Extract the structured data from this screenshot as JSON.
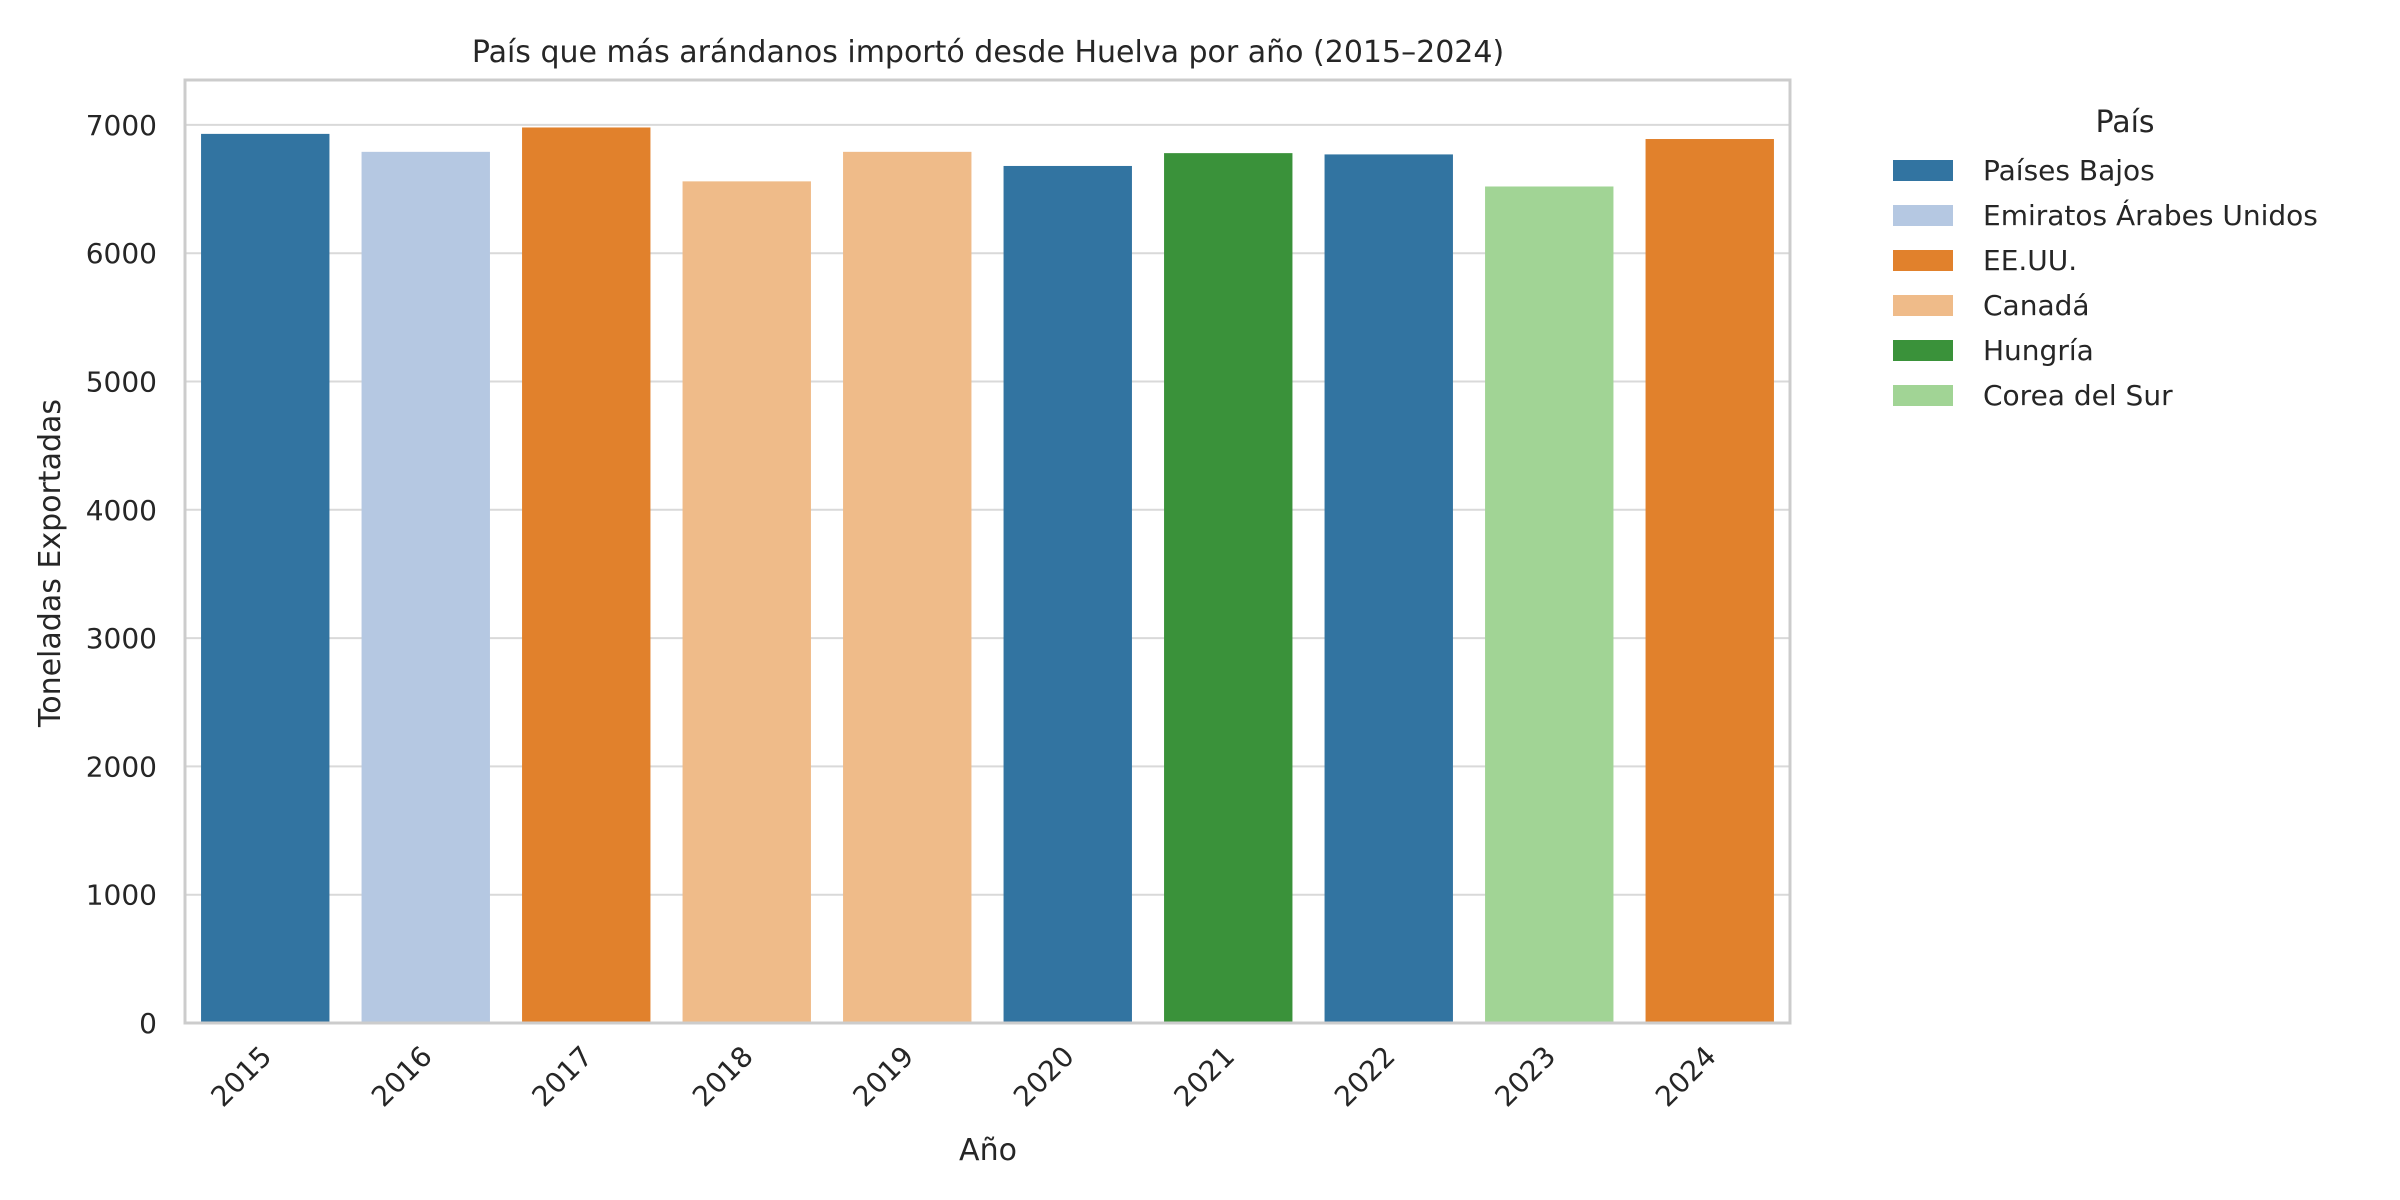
{
  "chart_data": {
    "type": "bar",
    "title": "País que más arándanos importó desde Huelva por año (2015–2024)",
    "xlabel": "Año",
    "ylabel": "Toneladas Exportadas",
    "ylim": [
      0,
      7350
    ],
    "yticks": [
      0,
      1000,
      2000,
      3000,
      4000,
      5000,
      6000,
      7000
    ],
    "grid": true,
    "legend": {
      "title": "País",
      "placement": "outside-right",
      "entries": [
        {
          "name": "Países Bajos",
          "color": "#3274a1"
        },
        {
          "name": "Emiratos Árabes Unidos",
          "color": "#b5c8e2"
        },
        {
          "name": "EE.UU.",
          "color": "#e1812c"
        },
        {
          "name": "Canadá",
          "color": "#efbb89"
        },
        {
          "name": "Hungría",
          "color": "#3a923a"
        },
        {
          "name": "Corea del Sur",
          "color": "#a1d495"
        }
      ]
    },
    "categories": [
      "2015",
      "2016",
      "2017",
      "2018",
      "2019",
      "2020",
      "2021",
      "2022",
      "2023",
      "2024"
    ],
    "values": [
      6930,
      6790,
      6980,
      6560,
      6790,
      6680,
      6780,
      6770,
      6520,
      6890
    ],
    "bar_country": [
      "Países Bajos",
      "Emiratos Árabes Unidos",
      "EE.UU.",
      "Canadá",
      "Canadá",
      "Países Bajos",
      "Hungría",
      "Países Bajos",
      "Corea del Sur",
      "EE.UU."
    ]
  }
}
